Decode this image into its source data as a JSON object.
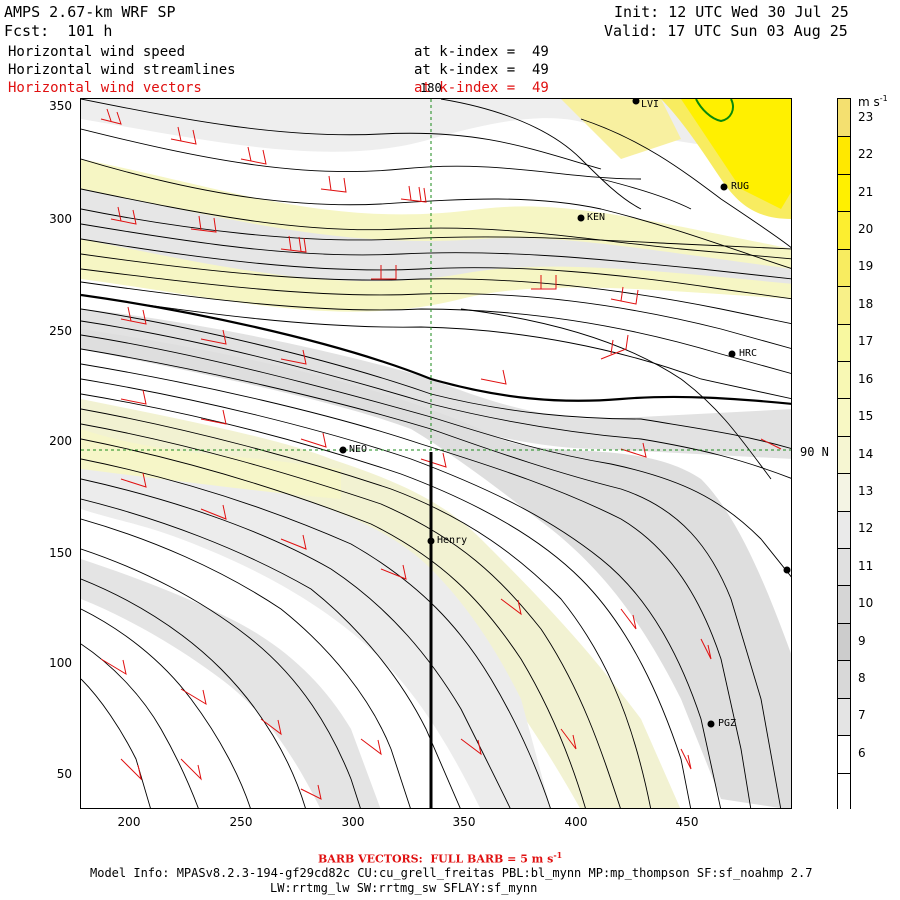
{
  "header": {
    "model_title": "AMPS 2.67-km WRF SP",
    "forecast": "Fcst:  101 h",
    "init": "Init: 12 UTC Wed 30 Jul 25",
    "valid": "Valid: 17 UTC Sun 03 Aug 25",
    "fields": [
      {
        "name": "Horizontal wind speed",
        "level": "at k-index =  49",
        "color": "#000000"
      },
      {
        "name": "Horizontal wind streamlines",
        "level": "at k-index =  49",
        "color": "#000000"
      },
      {
        "name": "Horizontal wind vectors",
        "level": "at k-index =  49",
        "color": "#e01010"
      }
    ]
  },
  "map": {
    "x_ticks": [
      "200",
      "250",
      "300",
      "350",
      "400",
      "450"
    ],
    "y_ticks": [
      "350",
      "300",
      "250",
      "200",
      "150",
      "100",
      "50"
    ],
    "meridian_label": "180",
    "parallel_label": "90 N",
    "stations": [
      {
        "id": "LVI",
        "label": "LVI"
      },
      {
        "id": "RUG",
        "label": "RUG"
      },
      {
        "id": "KEN",
        "label": "KEN"
      },
      {
        "id": "HRC",
        "label": "HRC"
      },
      {
        "id": "NEO",
        "label": "NEO"
      },
      {
        "id": "Henry",
        "label": "Henry"
      },
      {
        "id": "PGZ",
        "label": "PGZ"
      },
      {
        "id": "E",
        "label": ""
      }
    ]
  },
  "colorbar": {
    "units": "m s",
    "units_exp": "-1",
    "levels": [
      "23",
      "22",
      "21",
      "20",
      "19",
      "18",
      "17",
      "16",
      "15",
      "14",
      "13",
      "12",
      "11",
      "10",
      "9",
      "8",
      "7",
      "6"
    ],
    "colors": {
      "6": "#ffffff",
      "7": "#e4e4e4",
      "8": "#d8d8d8",
      "9": "#cccccc",
      "10": "#d6d6d6",
      "11": "#e0e0e0",
      "12": "#eaeaea",
      "13": "#f4f4e4",
      "14": "#f6f6d2",
      "15": "#f8f8c4",
      "16": "#f8f8b4",
      "17": "#f8f8a0",
      "18": "#f8f088",
      "19": "#f8ec60",
      "20": "#fcee30",
      "21": "#fff000",
      "22": "#ffe800",
      "23": "#f4e070"
    }
  },
  "footer": {
    "barb_note": "BARB VECTORS:  FULL BARB = 5 m s",
    "barb_exp": "-1",
    "model_info": "Model Info: MPASv8.2.3-194-gf29cd82c CU:cu_grell_freitas PBL:bl_mynn MP:mp_thompson SF:sf_noahmp 2.7",
    "model_info2": "LW:rrtmg_lw SW:rrtmg_sw SFLAY:sf_mynn"
  }
}
